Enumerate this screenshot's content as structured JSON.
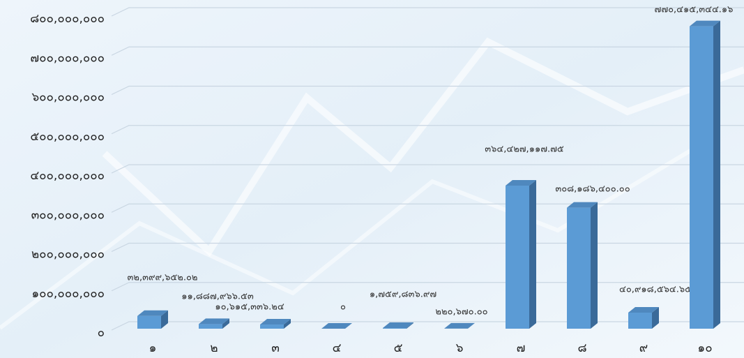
{
  "chart_data": {
    "type": "bar3d",
    "categories": [
      "๑",
      "๒",
      "๓",
      "๔",
      "๕",
      "๖",
      "๗",
      "๘",
      "๙",
      "๑๐"
    ],
    "values": [
      32399652.02,
      11887966.53,
      10615336.24,
      0,
      1759836.97,
      220670.0,
      364427117.75,
      308186400.0,
      40918564.65,
      770415344.16
    ],
    "value_labels": [
      "๓๒,๓๙๙,๖๕๒.๐๒",
      "๑๑,๘๘๗,๙๖๖.๕๓",
      "๑๐,๖๑๕,๓๓๖.๒๔",
      "๐",
      "๑,๗๕๙,๘๓๖.๙๗",
      "๒๒๐,๖๗๐.๐๐",
      "๓๖๔,๔๒๗,๑๑๗.๗๕",
      "๓๐๘,๑๘๖,๔๐๐.๐๐",
      "๔๐,๙๑๘,๕๖๔.๖๕",
      "๗๗๐,๔๑๕,๓๔๔.๑๖"
    ],
    "color": "#5b9bd5",
    "ylim": [
      0,
      800000000
    ],
    "yticks": [
      {
        "value": 0,
        "label": "๐"
      },
      {
        "value": 100000000,
        "label": "๑๐๐,๐๐๐,๐๐๐"
      },
      {
        "value": 200000000,
        "label": "๒๐๐,๐๐๐,๐๐๐"
      },
      {
        "value": 300000000,
        "label": "๓๐๐,๐๐๐,๐๐๐"
      },
      {
        "value": 400000000,
        "label": "๔๐๐,๐๐๐,๐๐๐"
      },
      {
        "value": 500000000,
        "label": "๕๐๐,๐๐๐,๐๐๐"
      },
      {
        "value": 600000000,
        "label": "๖๐๐,๐๐๐,๐๐๐"
      },
      {
        "value": 700000000,
        "label": "๗๐๐,๐๐๐,๐๐๐"
      },
      {
        "value": 800000000,
        "label": "๘๐๐,๐๐๐,๐๐๐"
      }
    ],
    "grid": true
  }
}
